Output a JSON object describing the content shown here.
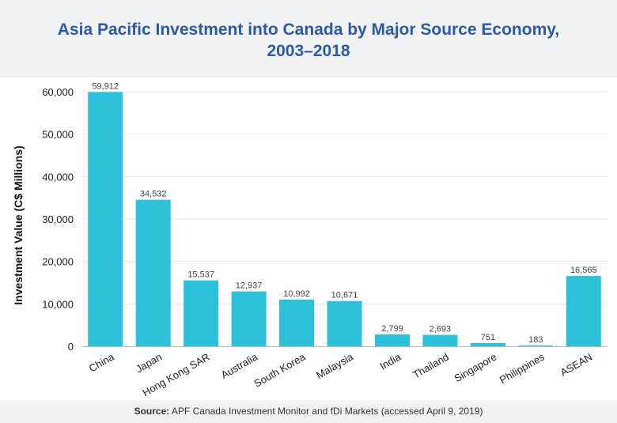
{
  "header": {
    "title_line1": "Asia Pacific Investment into Canada by Major Source Economy,",
    "title_line2": "2003–2018"
  },
  "footer": {
    "source_label": "Source:",
    "source_text": "APF Canada Investment Monitor and fDi Markets (accessed April 9, 2019)"
  },
  "chart_data": {
    "type": "bar",
    "title": "Asia Pacific Investment into Canada by Major Source Economy, 2003–2018",
    "xlabel": "",
    "ylabel": "Investment Value (C$ Millions)",
    "categories": [
      "China",
      "Japan",
      "Hong Kong SAR",
      "Australia",
      "South Korea",
      "Malaysia",
      "India",
      "Thailand",
      "Singapore",
      "Philippines",
      "ASEAN"
    ],
    "values": [
      59912,
      34532,
      15537,
      12937,
      10992,
      10671,
      2799,
      2693,
      751,
      183,
      16565
    ],
    "data_labels": [
      "59,912",
      "34,532",
      "15,537",
      "12,937",
      "10,992",
      "10,671",
      "2,799",
      "2,693",
      "751",
      "183",
      "16,565"
    ],
    "ylim": [
      0,
      60000
    ],
    "yticks": [
      0,
      10000,
      20000,
      30000,
      40000,
      50000,
      60000
    ],
    "ytick_labels": [
      "0",
      "10,000",
      "20,000",
      "30,000",
      "40,000",
      "50,000",
      "60,000"
    ],
    "grid": true,
    "bar_color": "#2bc1d8"
  }
}
